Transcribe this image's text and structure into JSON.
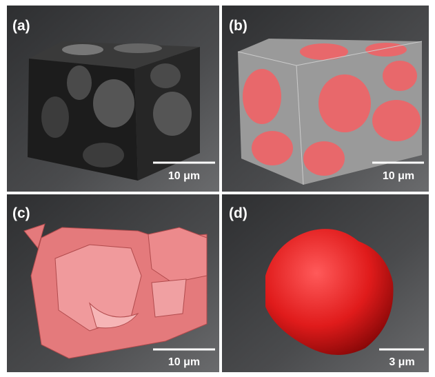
{
  "panels": [
    {
      "label": "(a)",
      "scale_bar": "10 μm"
    },
    {
      "label": "(b)",
      "scale_bar": "10 μm"
    },
    {
      "label": "(c)",
      "scale_bar": "10 μm"
    },
    {
      "label": "(d)",
      "scale_bar": "3 μm"
    }
  ]
}
